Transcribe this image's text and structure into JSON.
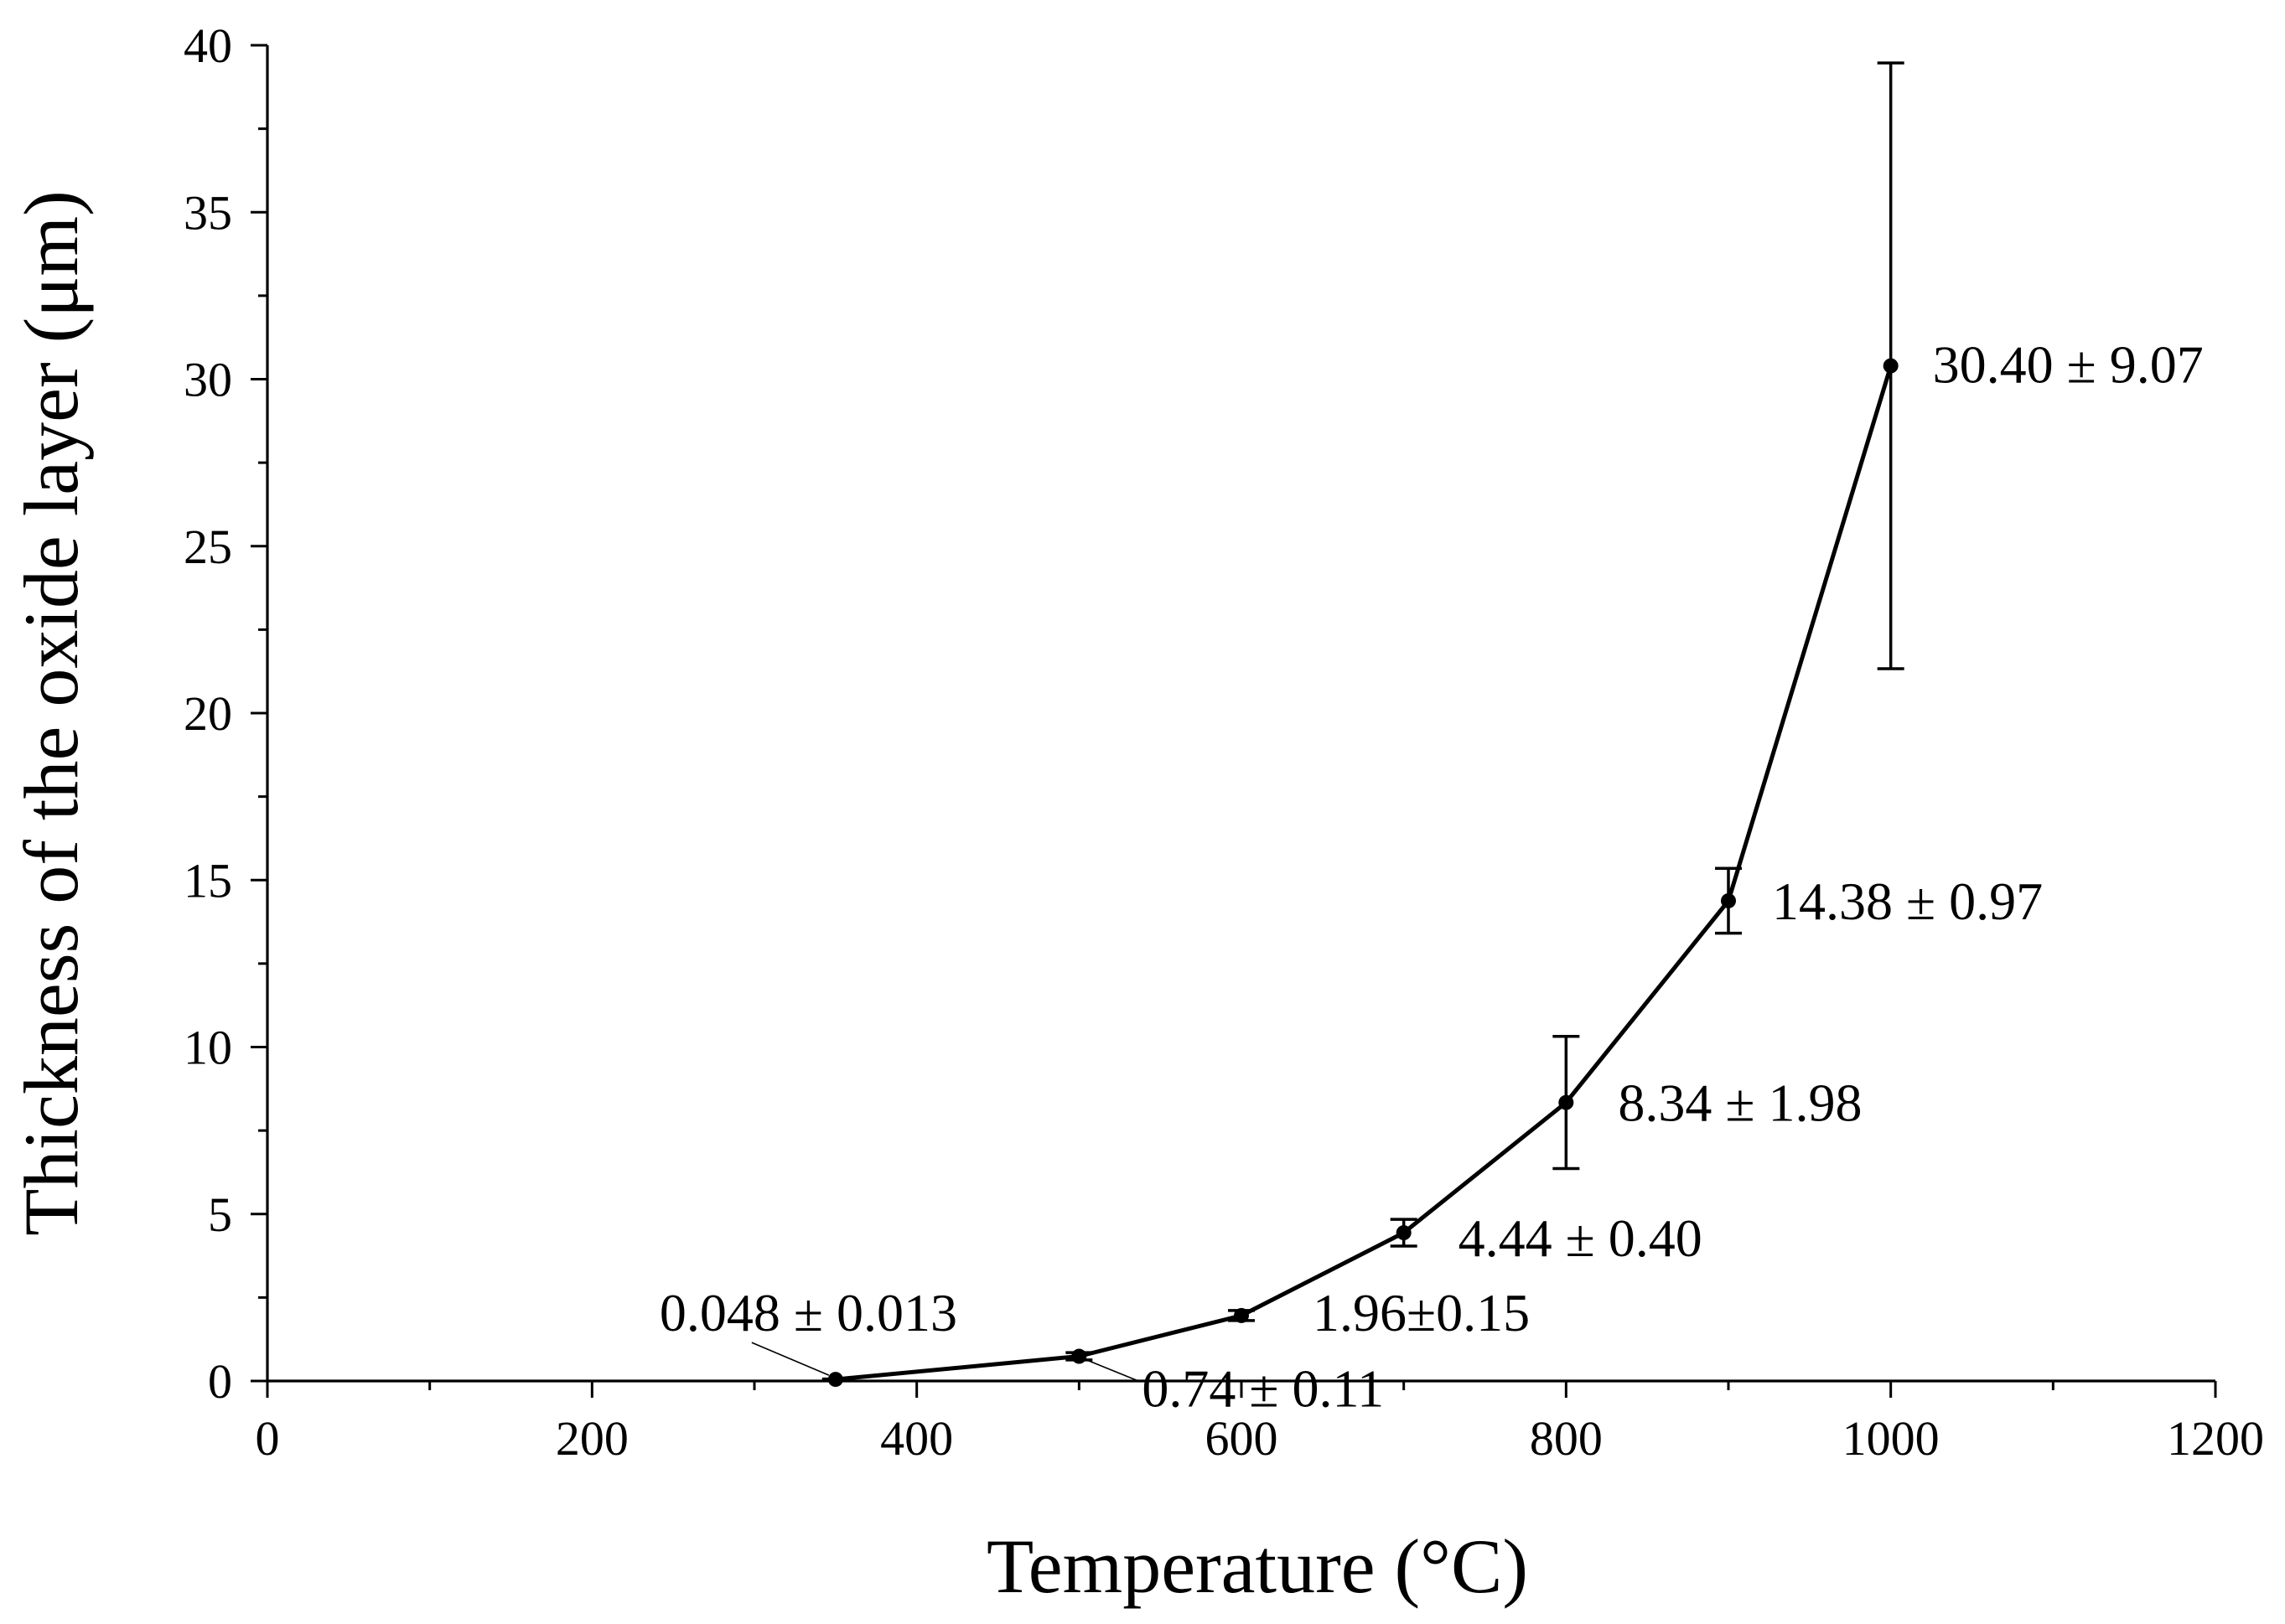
{
  "chart_data": {
    "type": "line",
    "title": "",
    "xlabel": "Temperature (°C)",
    "ylabel": "Thickness of the oxide layer (μm)",
    "xlim": [
      0,
      1200
    ],
    "ylim": [
      0,
      40
    ],
    "x_major_ticks": [
      0,
      200,
      400,
      600,
      800,
      1000,
      1200
    ],
    "x_minor_ticks": [
      100,
      300,
      500,
      700,
      900,
      1100
    ],
    "y_major_ticks": [
      0,
      5,
      10,
      15,
      20,
      25,
      30,
      35,
      40
    ],
    "y_minor_ticks": [
      2.5,
      7.5,
      12.5,
      17.5,
      22.5,
      27.5,
      32.5,
      37.5
    ],
    "grid": false,
    "legend": "none",
    "series": [
      {
        "name": "Oxide layer thickness",
        "x": [
          350,
          500,
          600,
          700,
          800,
          900,
          1000
        ],
        "y": [
          0.048,
          0.74,
          1.96,
          4.44,
          8.34,
          14.38,
          30.4
        ],
        "error": [
          0.013,
          0.11,
          0.15,
          0.4,
          1.98,
          0.97,
          9.07
        ],
        "labels": [
          "0.048 ± 0.013",
          "0.74 ± 0.11",
          "1.96±0.15",
          "4.44 ± 0.40",
          "8.34 ± 1.98",
          "14.38 ± 0.97",
          "30.40 ± 9.07"
        ]
      }
    ]
  },
  "colors": {
    "line": "#000000",
    "background": "#ffffff"
  }
}
